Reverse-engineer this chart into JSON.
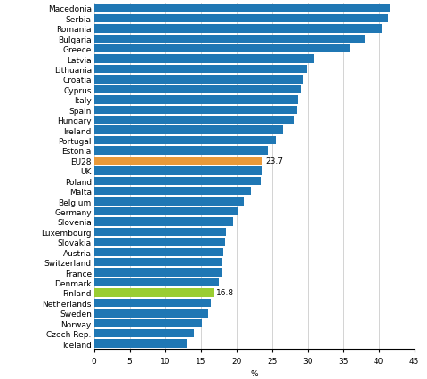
{
  "categories": [
    "Iceland",
    "Czech Rep.",
    "Norway",
    "Sweden",
    "Netherlands",
    "Finland",
    "Denmark",
    "France",
    "Switzerland",
    "Austria",
    "Slovakia",
    "Luxembourg",
    "Slovenia",
    "Germany",
    "Belgium",
    "Malta",
    "Poland",
    "UK",
    "EU28",
    "Estonia",
    "Portugal",
    "Ireland",
    "Hungary",
    "Spain",
    "Italy",
    "Cyprus",
    "Croatia",
    "Lithuania",
    "Latvia",
    "Greece",
    "Bulgaria",
    "Romania",
    "Serbia",
    "Macedonia"
  ],
  "values": [
    13.0,
    14.0,
    15.2,
    16.0,
    16.4,
    16.8,
    17.5,
    18.0,
    18.1,
    18.2,
    18.4,
    18.6,
    19.5,
    20.3,
    21.1,
    22.0,
    23.4,
    23.7,
    23.7,
    24.4,
    25.5,
    26.6,
    28.2,
    28.6,
    28.7,
    29.0,
    29.4,
    29.9,
    30.9,
    36.0,
    38.0,
    40.4,
    41.3,
    41.6
  ],
  "colors": [
    "#1f77b4",
    "#1f77b4",
    "#1f77b4",
    "#1f77b4",
    "#1f77b4",
    "#9acd32",
    "#1f77b4",
    "#1f77b4",
    "#1f77b4",
    "#1f77b4",
    "#1f77b4",
    "#1f77b4",
    "#1f77b4",
    "#1f77b4",
    "#1f77b4",
    "#1f77b4",
    "#1f77b4",
    "#1f77b4",
    "#e8993a",
    "#1f77b4",
    "#1f77b4",
    "#1f77b4",
    "#1f77b4",
    "#1f77b4",
    "#1f77b4",
    "#1f77b4",
    "#1f77b4",
    "#1f77b4",
    "#1f77b4",
    "#1f77b4",
    "#1f77b4",
    "#1f77b4",
    "#1f77b4",
    "#1f77b4"
  ],
  "annotations": {
    "EU28": "23.7",
    "Finland": "16.8"
  },
  "xlabel": "%",
  "xlim": [
    0,
    45
  ],
  "xticks": [
    0,
    5,
    10,
    15,
    20,
    25,
    30,
    35,
    40,
    45
  ],
  "bar_height": 0.82,
  "grid_color": "#cccccc",
  "label_fontsize": 6.5,
  "tick_fontsize": 6.5,
  "annot_fontsize": 6.5
}
